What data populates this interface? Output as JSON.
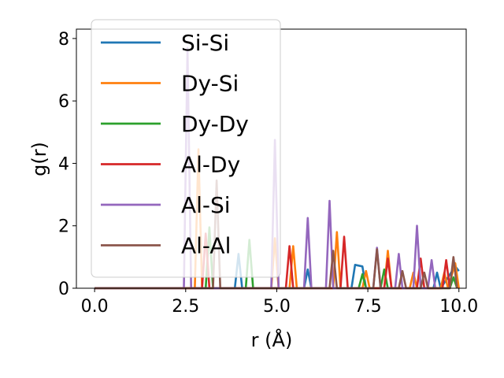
{
  "chart_data": {
    "type": "line",
    "title": "",
    "xlabel": "r (Å)",
    "ylabel": "g(r)",
    "xlim": [
      -0.5,
      10.2
    ],
    "ylim": [
      0,
      8.3
    ],
    "xticks": [
      0.0,
      2.5,
      5.0,
      7.5,
      10.0
    ],
    "xtick_labels": [
      "0.0",
      "2.5",
      "5.0",
      "7.5",
      "10.0"
    ],
    "yticks": [
      0,
      2,
      4,
      6,
      8
    ],
    "ytick_labels": [
      "0",
      "2",
      "4",
      "6",
      "8"
    ],
    "grid": false,
    "legend_position": "upper-left",
    "series": [
      {
        "name": "Si-Si",
        "color": "#1f77b4",
        "x": [
          0,
          3.85,
          3.95,
          4.05,
          4.15,
          5.75,
          5.85,
          5.95,
          7.05,
          7.15,
          7.35,
          7.45,
          9.3,
          9.4,
          9.5,
          9.9,
          10.0
        ],
        "y": [
          0,
          0,
          1.1,
          0,
          0,
          0,
          0.6,
          0,
          0,
          0.75,
          0.7,
          0,
          0,
          0.5,
          0,
          0.7,
          0.55
        ]
      },
      {
        "name": "Dy-Si",
        "color": "#ff7f0e",
        "x": [
          0,
          2.75,
          2.85,
          2.95,
          4.85,
          4.95,
          5.05,
          5.35,
          5.45,
          5.55,
          6.55,
          6.65,
          6.75,
          7.35,
          7.45,
          7.55,
          7.95,
          8.05,
          8.15,
          8.65,
          8.75,
          8.85,
          9.5,
          9.6,
          9.7,
          9.9,
          10.0
        ],
        "y": [
          0,
          0,
          4.45,
          0,
          0,
          1.6,
          0,
          0,
          1.35,
          0,
          0,
          1.8,
          0,
          0,
          0.55,
          0,
          0,
          1.2,
          0,
          0,
          0.5,
          0,
          0,
          0.5,
          0,
          0.8,
          0
        ]
      },
      {
        "name": "Dy-Dy",
        "color": "#2ca02c",
        "x": [
          0,
          3.05,
          3.15,
          3.25,
          4.15,
          4.25,
          4.35,
          7.25,
          7.35,
          7.45,
          7.85,
          7.95,
          8.05,
          9.75,
          9.85,
          9.95
        ],
        "y": [
          0,
          0,
          1.95,
          0,
          0,
          1.55,
          0,
          0,
          0.45,
          0,
          0,
          0.6,
          0,
          0,
          0.35,
          0
        ]
      },
      {
        "name": "Al-Dy",
        "color": "#d62728",
        "x": [
          0,
          2.95,
          3.05,
          3.15,
          5.25,
          5.35,
          5.45,
          6.75,
          6.85,
          6.95,
          7.95,
          8.05,
          8.15,
          8.85,
          8.95,
          9.05,
          9.55,
          9.65,
          9.75
        ],
        "y": [
          0,
          0,
          1.75,
          0,
          0,
          1.35,
          0,
          0,
          1.65,
          0,
          0,
          0.95,
          0,
          0,
          0.95,
          0,
          0,
          0.9,
          0
        ]
      },
      {
        "name": "Al-Si",
        "color": "#9467bd",
        "x": [
          0,
          2.45,
          2.55,
          2.65,
          4.85,
          4.95,
          5.05,
          5.75,
          5.85,
          5.95,
          6.35,
          6.45,
          6.55,
          7.65,
          7.75,
          7.85,
          8.25,
          8.35,
          8.45,
          8.75,
          8.85,
          8.95,
          9.15,
          9.25,
          9.35
        ],
        "y": [
          0,
          0,
          7.7,
          0,
          0,
          4.75,
          0,
          0,
          2.25,
          0,
          0,
          2.8,
          0,
          0,
          1.3,
          0,
          0,
          1.1,
          0,
          0,
          2.0,
          0,
          0,
          0.9,
          0
        ]
      },
      {
        "name": "Al-Al",
        "color": "#8c564b",
        "x": [
          0,
          3.25,
          3.35,
          3.45,
          6.45,
          6.55,
          6.65,
          7.65,
          7.75,
          7.85,
          8.35,
          8.45,
          8.55,
          8.95,
          9.05,
          9.15,
          9.75,
          9.85,
          9.95
        ],
        "y": [
          0,
          0,
          3.45,
          0,
          0,
          1.2,
          0,
          0,
          1.25,
          0,
          0,
          0.55,
          0,
          0,
          0.5,
          0,
          0,
          1.0,
          0
        ]
      }
    ]
  }
}
